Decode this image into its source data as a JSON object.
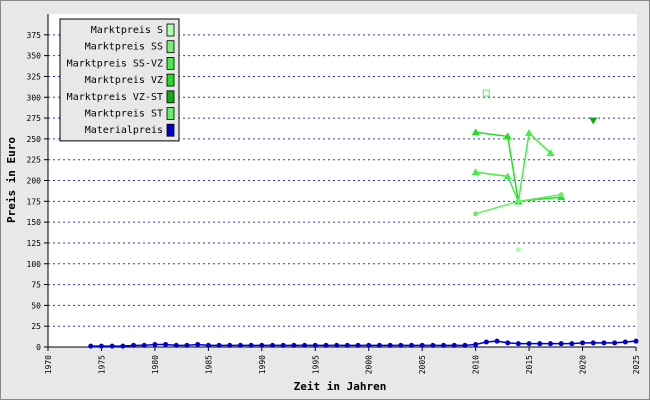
{
  "chart_data": {
    "type": "line",
    "x_label": "Zeit in Jahren",
    "y_label": "Preis in Euro",
    "xlim": [
      1970,
      2025
    ],
    "xticks": [
      1970,
      1975,
      1980,
      1985,
      1990,
      1995,
      2000,
      2005,
      2010,
      2015,
      2020,
      2025
    ],
    "ylim": [
      0,
      400
    ],
    "yticks": [
      0,
      25,
      50,
      75,
      100,
      125,
      150,
      175,
      200,
      225,
      250,
      275,
      300,
      325,
      350,
      375
    ],
    "grid": true,
    "legend": "top-left",
    "series": [
      {
        "name": "Marktpreis S",
        "color": "#aaffaa",
        "marker": "circle",
        "x": [
          2014
        ],
        "values": [
          117
        ]
      },
      {
        "name": "Marktpreis SS",
        "color": "#77ee77",
        "marker": "square-open",
        "x": [
          2011
        ],
        "values": [
          305
        ]
      },
      {
        "name": "Marktpreis SS-VZ",
        "color": "#44ee44",
        "marker": "triangle",
        "x": [
          2010,
          2013,
          2014,
          2015,
          2017
        ],
        "values": [
          210,
          205,
          175,
          257,
          233
        ]
      },
      {
        "name": "Marktpreis VZ",
        "color": "#22dd22",
        "marker": "triangle",
        "x": [
          2010,
          2013,
          2014,
          2018
        ],
        "values": [
          258,
          253,
          175,
          180
        ]
      },
      {
        "name": "Marktpreis VZ-ST",
        "color": "#11aa11",
        "marker": "triangle-down",
        "x": [
          2021
        ],
        "values": [
          272
        ]
      },
      {
        "name": "Marktpreis ST",
        "color": "#66ee66",
        "marker": "circle",
        "x": [
          2010,
          2014,
          2018
        ],
        "values": [
          160,
          175,
          183
        ]
      },
      {
        "name": "Materialpreis",
        "color": "#0000cc",
        "marker": "circle",
        "x": [
          1974,
          1975,
          1976,
          1977,
          1978,
          1979,
          1980,
          1981,
          1982,
          1983,
          1984,
          1985,
          1986,
          1987,
          1988,
          1989,
          1990,
          1991,
          1992,
          1993,
          1994,
          1995,
          1996,
          1997,
          1998,
          1999,
          2000,
          2001,
          2002,
          2003,
          2004,
          2005,
          2006,
          2007,
          2008,
          2009,
          2010,
          2011,
          2012,
          2013,
          2014,
          2015,
          2016,
          2017,
          2018,
          2019,
          2020,
          2021,
          2022,
          2023,
          2024,
          2025
        ],
        "values": [
          1,
          1,
          1,
          1,
          2,
          2,
          3,
          3,
          2,
          2,
          3,
          2,
          2,
          2,
          2,
          2,
          2,
          2,
          2,
          2,
          2,
          2,
          2,
          2,
          2,
          2,
          2,
          2,
          2,
          2,
          2,
          2,
          2,
          2,
          2,
          2,
          3,
          6,
          7,
          5,
          4,
          4,
          4,
          4,
          4,
          4,
          5,
          5,
          5,
          5,
          6,
          7
        ]
      }
    ]
  }
}
